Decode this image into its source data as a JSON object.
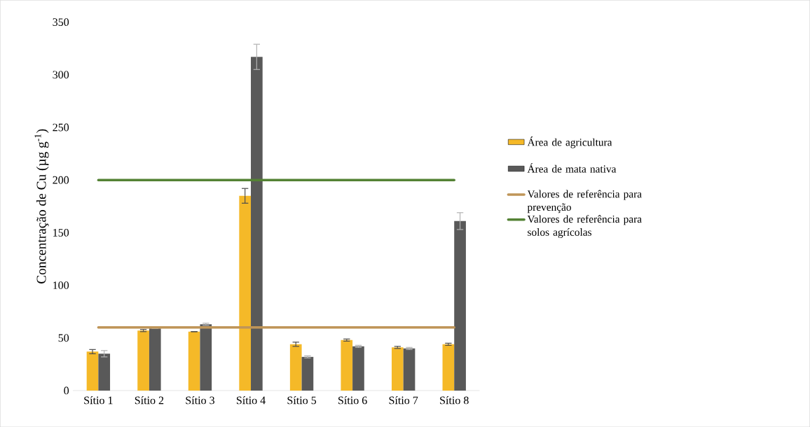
{
  "chart_data": {
    "type": "bar",
    "ylabel": "Concentração de Cu  (µg g$^{-1}$)",
    "categories": [
      "Sítio 1",
      "Sítio 2",
      "Sítio 3",
      "Sítio 4",
      "Sítio 5",
      "Sítio 6",
      "Sítio 7",
      "Sítio 8"
    ],
    "series": [
      {
        "name": "Área de agricultura",
        "color": "#f5b928",
        "values": [
          37,
          57,
          56,
          185,
          44,
          48,
          41,
          44
        ],
        "errors": [
          2,
          1,
          null,
          7,
          2,
          1,
          1,
          1
        ]
      },
      {
        "name": "Área de mata nativa",
        "color": "#595959",
        "values": [
          35,
          59,
          63,
          317,
          32,
          42,
          40,
          161
        ],
        "errors": [
          3,
          null,
          1,
          12,
          1,
          1,
          1,
          8
        ]
      },
      {
        "name": "Valores de referência para prevenção",
        "type": "line",
        "color": "#bf9558",
        "values": [
          60,
          60,
          60,
          60,
          60,
          60,
          60,
          60
        ]
      },
      {
        "name": "Valores de referência para solos agrícolas",
        "type": "line",
        "color": "#548235",
        "values": [
          200,
          200,
          200,
          200,
          200,
          200,
          200,
          200
        ]
      }
    ],
    "ylim": [
      0,
      350
    ],
    "yticks": [
      0,
      50,
      100,
      150,
      200,
      250,
      300,
      350
    ],
    "legend": "right"
  }
}
